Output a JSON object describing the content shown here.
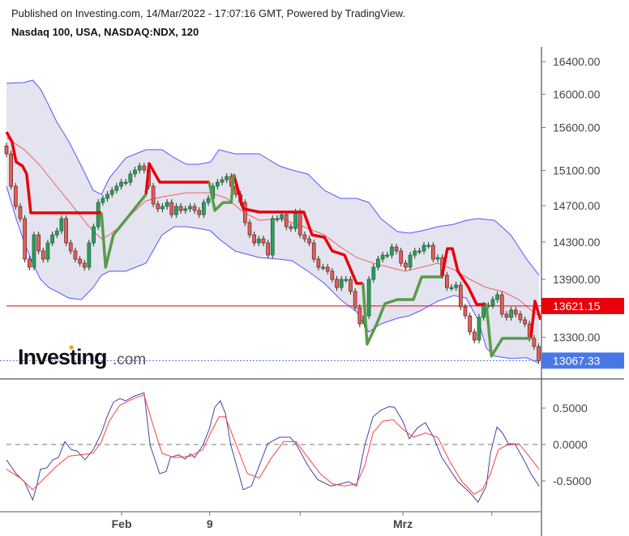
{
  "header": {
    "published": "Published on Investing.com, 14/Mar/2022 - 17:07:16 GMT, Powered by TradingView.",
    "symbol": "Nasdaq 100, USA, NASDAQ:NDX, 120"
  },
  "logo": {
    "main": "Investing",
    "suffix": ".com"
  },
  "colors": {
    "up": "#2e9e5b",
    "down": "#e0605a",
    "band_fill": "#e4e4f0",
    "band_line": "#5555ff",
    "basis": "#f06060",
    "trend_down": "#e8000b",
    "trend_up": "#5a9a4a",
    "osc_fast": "#4444aa",
    "osc_slow": "#ff4040",
    "last_price": "#4a77e8",
    "ref_price": "#e8000b"
  },
  "chart_data": [
    {
      "type": "candlestick",
      "yscale": "log",
      "ylim": [
        12950,
        16750
      ],
      "yticks": [
        "16400.00",
        "16000.00",
        "15600.00",
        "15100.00",
        "14700.00",
        "14300.00",
        "13900.00",
        "13300.00"
      ],
      "ytick_values": [
        16400,
        16000,
        15600,
        15100,
        14700,
        14300,
        13900,
        13300
      ],
      "closes": [
        15291,
        14919,
        14692,
        14557,
        14115,
        14029,
        14378,
        14203,
        14115,
        14290,
        14378,
        14422,
        14557,
        14290,
        14203,
        14115,
        14072,
        14029,
        14290,
        14467,
        14736,
        14782,
        14827,
        14873,
        14919,
        14965,
        14965,
        15058,
        15104,
        15151,
        15104,
        14919,
        14719,
        14665,
        14692,
        14736,
        14601,
        14692,
        14647,
        14665,
        14692,
        14647,
        14601,
        14736,
        14782,
        14919,
        14965,
        14993,
        15030,
        14919,
        14827,
        14736,
        14512,
        14378,
        14290,
        14334,
        14290,
        14159,
        14557,
        14557,
        14601,
        14467,
        14449,
        14629,
        14378,
        14334,
        14290,
        14115,
        14029,
        14029,
        13986,
        13900,
        13814,
        13900,
        13900,
        13773,
        13604,
        13437,
        13520,
        13900,
        14029,
        14115,
        14159,
        14159,
        14246,
        14203,
        14072,
        14029,
        14159,
        14203,
        14203,
        14264,
        14264,
        14115,
        14132,
        13943,
        13814,
        13814,
        13840,
        13612,
        13520,
        13355,
        13273,
        13504,
        13629,
        13629,
        13688,
        13738,
        13537,
        13504,
        13579,
        13537,
        13479,
        13437,
        13290,
        13208,
        13067.33
      ],
      "band_upper": [
        [
          0,
          16133
        ],
        [
          3.9,
          16143
        ],
        [
          5.7,
          16172
        ],
        [
          7.4,
          16063
        ],
        [
          9.2,
          15867
        ],
        [
          10.9,
          15672
        ],
        [
          13.6,
          15433
        ],
        [
          16.3,
          15151
        ],
        [
          18.9,
          14873
        ],
        [
          20.7,
          14827
        ],
        [
          22.4,
          15011
        ],
        [
          26,
          15244
        ],
        [
          30.4,
          15339
        ],
        [
          33.9,
          15339
        ],
        [
          36.6,
          15244
        ],
        [
          39.2,
          15170
        ],
        [
          41.9,
          15170
        ],
        [
          44.5,
          15197
        ],
        [
          46.3,
          15339
        ],
        [
          49.8,
          15291
        ],
        [
          55.1,
          15291
        ],
        [
          59.5,
          15151
        ],
        [
          62.2,
          15104
        ],
        [
          65.7,
          15058
        ],
        [
          69.3,
          14873
        ],
        [
          72.8,
          14782
        ],
        [
          76.3,
          14782
        ],
        [
          79,
          14736
        ],
        [
          81.6,
          14557
        ],
        [
          85.2,
          14414
        ],
        [
          87.8,
          14396
        ],
        [
          90.5,
          14422
        ],
        [
          94,
          14467
        ],
        [
          97.5,
          14494
        ],
        [
          100.2,
          14538
        ],
        [
          102.8,
          14557
        ],
        [
          106.4,
          14538
        ],
        [
          109.9,
          14378
        ],
        [
          113.4,
          14115
        ],
        [
          116.1,
          13943
        ]
      ],
      "band_lower": [
        [
          0,
          14919
        ],
        [
          2.1,
          14557
        ],
        [
          3.9,
          14290
        ],
        [
          5.7,
          14072
        ],
        [
          7.4,
          13900
        ],
        [
          9.2,
          13814
        ],
        [
          10.9,
          13773
        ],
        [
          13.6,
          13704
        ],
        [
          16.3,
          13688
        ],
        [
          18.9,
          13814
        ],
        [
          20.7,
          13943
        ],
        [
          22.4,
          13986
        ],
        [
          26,
          13986
        ],
        [
          30.4,
          14072
        ],
        [
          33.9,
          14378
        ],
        [
          36.6,
          14467
        ],
        [
          39.2,
          14467
        ],
        [
          41.9,
          14449
        ],
        [
          44.5,
          14422
        ],
        [
          46.3,
          14334
        ],
        [
          49.8,
          14203
        ],
        [
          55.1,
          14132
        ],
        [
          59.5,
          14115
        ],
        [
          62.2,
          14098
        ],
        [
          65.7,
          13986
        ],
        [
          69.3,
          13857
        ],
        [
          72.8,
          13688
        ],
        [
          76.3,
          13562
        ],
        [
          79,
          13355
        ],
        [
          81.6,
          13437
        ],
        [
          85.2,
          13495
        ],
        [
          87.8,
          13520
        ],
        [
          90.5,
          13579
        ],
        [
          94,
          13671
        ],
        [
          97.5,
          13730
        ],
        [
          100.2,
          13704
        ],
        [
          102.8,
          13479
        ],
        [
          104.6,
          13192
        ],
        [
          106.4,
          13112
        ],
        [
          109.9,
          13088
        ],
        [
          113.4,
          13096
        ],
        [
          116.1,
          13043
        ]
      ],
      "band_basis": [
        [
          0,
          15480
        ],
        [
          3.9,
          15339
        ],
        [
          7.4,
          15151
        ],
        [
          10.9,
          14919
        ],
        [
          14.5,
          14692
        ],
        [
          18,
          14467
        ],
        [
          20.7,
          14334
        ],
        [
          22.4,
          14378
        ],
        [
          25.1,
          14485
        ],
        [
          27.7,
          14629
        ],
        [
          30.4,
          14755
        ],
        [
          33.9,
          14800
        ],
        [
          39.2,
          14845
        ],
        [
          44.5,
          14845
        ],
        [
          48,
          14782
        ],
        [
          51.6,
          14629
        ],
        [
          55.1,
          14538
        ],
        [
          59.5,
          14557
        ],
        [
          63.9,
          14485
        ],
        [
          69.3,
          14378
        ],
        [
          72.8,
          14246
        ],
        [
          76.3,
          14132
        ],
        [
          79.9,
          14072
        ],
        [
          83.4,
          14029
        ],
        [
          86.9,
          13986
        ],
        [
          90.5,
          14029
        ],
        [
          94,
          14072
        ],
        [
          97.5,
          14003
        ],
        [
          101,
          13900
        ],
        [
          104.6,
          13814
        ],
        [
          108.1,
          13773
        ],
        [
          111.7,
          13688
        ],
        [
          114.3,
          13579
        ],
        [
          116.1,
          13520
        ]
      ],
      "trend_down_segments": [
        [
          [
            0,
            15547
          ],
          [
            1.2,
            15433
          ],
          [
            2.1,
            15197
          ],
          [
            3.5,
            15151
          ],
          [
            4.4,
            15058
          ],
          [
            5.3,
            14620
          ],
          [
            20.7,
            14620
          ]
        ],
        [
          [
            30.4,
            14827
          ],
          [
            31.1,
            15179
          ],
          [
            33.4,
            14965
          ],
          [
            44.2,
            14965
          ]
        ],
        [
          [
            49.5,
            15058
          ],
          [
            51.6,
            14665
          ],
          [
            55.1,
            14629
          ],
          [
            64.8,
            14629
          ],
          [
            66.6,
            14378
          ],
          [
            69.3,
            14352
          ],
          [
            71,
            14203
          ],
          [
            73.7,
            14159
          ],
          [
            76.3,
            13857
          ],
          [
            77.7,
            13857
          ]
        ],
        [
          [
            94.9,
            13926
          ],
          [
            96.1,
            14228
          ],
          [
            97.2,
            14228
          ],
          [
            98.4,
            13986
          ],
          [
            100.7,
            13814
          ],
          [
            102.5,
            13637
          ],
          [
            104.6,
            13637
          ]
        ],
        [
          [
            114.3,
            13290
          ],
          [
            115.2,
            13671
          ],
          [
            116.4,
            13479
          ]
        ]
      ],
      "trend_up_segments": [
        [
          [
            20.7,
            14620
          ],
          [
            21.6,
            14029
          ],
          [
            23.3,
            14378
          ],
          [
            26.9,
            14601
          ],
          [
            30.4,
            14827
          ]
        ],
        [
          [
            44.2,
            14965
          ],
          [
            45.4,
            14647
          ],
          [
            47.2,
            14736
          ],
          [
            49,
            14736
          ],
          [
            49.5,
            15058
          ]
        ],
        [
          [
            77.7,
            13857
          ],
          [
            78.6,
            13232
          ],
          [
            80.7,
            13437
          ],
          [
            82.5,
            13646
          ],
          [
            85.2,
            13688
          ],
          [
            88.7,
            13688
          ],
          [
            90.5,
            13926
          ],
          [
            94.9,
            13926
          ]
        ],
        [
          [
            104.6,
            13637
          ],
          [
            105.7,
            13112
          ],
          [
            108.1,
            13290
          ],
          [
            114.3,
            13290
          ]
        ]
      ],
      "ref_price": {
        "value": 13621.15,
        "label": "13621.15"
      },
      "last_price": {
        "value": 13067.33,
        "label": "13067.33"
      }
    },
    {
      "type": "line",
      "ylim": [
        -0.92,
        0.92
      ],
      "yticks": [
        "0.5000",
        "0.0000",
        "-0.5000"
      ],
      "ytick_values": [
        0.5,
        0,
        -0.5
      ],
      "zero_line": "dashed",
      "fast": [
        [
          0,
          -0.21
        ],
        [
          2.1,
          -0.4
        ],
        [
          3.9,
          -0.51
        ],
        [
          5.7,
          -0.76
        ],
        [
          6.5,
          -0.59
        ],
        [
          7.4,
          -0.34
        ],
        [
          8.8,
          -0.32
        ],
        [
          10.1,
          -0.21
        ],
        [
          11.3,
          -0.18
        ],
        [
          12.7,
          0.04
        ],
        [
          14.1,
          -0.07
        ],
        [
          15.4,
          -0.09
        ],
        [
          17.1,
          -0.21
        ],
        [
          18.9,
          -0.07
        ],
        [
          20.7,
          0.16
        ],
        [
          21.9,
          0.38
        ],
        [
          23.3,
          0.58
        ],
        [
          24.7,
          0.63
        ],
        [
          26,
          0.6
        ],
        [
          27.7,
          0.66
        ],
        [
          30,
          0.71
        ],
        [
          31.3,
          -0.01
        ],
        [
          33.4,
          -0.4
        ],
        [
          34.8,
          -0.37
        ],
        [
          35.7,
          -0.18
        ],
        [
          37.5,
          -0.14
        ],
        [
          38.9,
          -0.2
        ],
        [
          40.1,
          -0.13
        ],
        [
          41,
          -0.18
        ],
        [
          42.8,
          -0.01
        ],
        [
          44.2,
          0.21
        ],
        [
          45.4,
          0.51
        ],
        [
          46.6,
          0.6
        ],
        [
          47.7,
          0.43
        ],
        [
          48.9,
          -0.01
        ],
        [
          51.6,
          -0.62
        ],
        [
          53.4,
          -0.57
        ],
        [
          55.1,
          -0.29
        ],
        [
          56.9,
          0.01
        ],
        [
          59.5,
          0.1
        ],
        [
          61.8,
          0.1
        ],
        [
          63.1,
          0.01
        ],
        [
          65.7,
          -0.29
        ],
        [
          67.8,
          -0.48
        ],
        [
          70.7,
          -0.57
        ],
        [
          72.8,
          -0.54
        ],
        [
          74.6,
          -0.51
        ],
        [
          76.3,
          -0.57
        ],
        [
          78.1,
          -0.01
        ],
        [
          79.9,
          0.38
        ],
        [
          81.6,
          0.47
        ],
        [
          83.4,
          0.52
        ],
        [
          84.6,
          0.51
        ],
        [
          86.4,
          0.32
        ],
        [
          87.8,
          0.08
        ],
        [
          89.6,
          0.23
        ],
        [
          91.3,
          0.3
        ],
        [
          93.1,
          0.1
        ],
        [
          94.9,
          -0.18
        ],
        [
          96.6,
          -0.34
        ],
        [
          98.4,
          -0.51
        ],
        [
          101,
          -0.66
        ],
        [
          102.8,
          -0.79
        ],
        [
          104.6,
          -0.57
        ],
        [
          105.5,
          -0.12
        ],
        [
          106.9,
          0.24
        ],
        [
          108.1,
          0.16
        ],
        [
          109.4,
          0.01
        ],
        [
          110.8,
          0.01
        ],
        [
          112.5,
          -0.18
        ],
        [
          114.3,
          -0.4
        ],
        [
          116.1,
          -0.57
        ]
      ],
      "slow": [
        [
          0,
          -0.34
        ],
        [
          3,
          -0.46
        ],
        [
          5.7,
          -0.62
        ],
        [
          8.3,
          -0.46
        ],
        [
          11,
          -0.29
        ],
        [
          13.6,
          -0.16
        ],
        [
          16.3,
          -0.14
        ],
        [
          18.9,
          -0.12
        ],
        [
          20.7,
          0.04
        ],
        [
          22.4,
          0.32
        ],
        [
          24.7,
          0.54
        ],
        [
          27.7,
          0.63
        ],
        [
          30,
          0.68
        ],
        [
          32.2,
          0.21
        ],
        [
          33.9,
          -0.12
        ],
        [
          36.6,
          -0.18
        ],
        [
          40.1,
          -0.16
        ],
        [
          42.8,
          -0.07
        ],
        [
          44.5,
          0.16
        ],
        [
          46.3,
          0.38
        ],
        [
          47.7,
          0.38
        ],
        [
          49.8,
          0.04
        ],
        [
          52.5,
          -0.4
        ],
        [
          55.1,
          -0.46
        ],
        [
          57.8,
          -0.18
        ],
        [
          60.4,
          0.04
        ],
        [
          63.1,
          0.04
        ],
        [
          65.7,
          -0.18
        ],
        [
          68.4,
          -0.4
        ],
        [
          71,
          -0.54
        ],
        [
          73.7,
          -0.57
        ],
        [
          76.3,
          -0.54
        ],
        [
          78.1,
          -0.29
        ],
        [
          79.9,
          0.16
        ],
        [
          82,
          0.32
        ],
        [
          84.3,
          0.34
        ],
        [
          86.4,
          0.21
        ],
        [
          88.7,
          0.1
        ],
        [
          91.3,
          0.16
        ],
        [
          94,
          0.1
        ],
        [
          96.6,
          -0.23
        ],
        [
          99.3,
          -0.51
        ],
        [
          101.9,
          -0.68
        ],
        [
          103.7,
          -0.62
        ],
        [
          105.5,
          -0.4
        ],
        [
          107.2,
          -0.07
        ],
        [
          109,
          -0.01
        ],
        [
          111.7,
          0.01
        ],
        [
          113.4,
          -0.12
        ],
        [
          116.1,
          -0.34
        ]
      ]
    }
  ],
  "x_axis": {
    "ticks": [
      {
        "bar": 25.1,
        "label": "Feb"
      },
      {
        "bar": 44.3,
        "label": "9"
      },
      {
        "bar": 64,
        "label": ""
      },
      {
        "bar": 86.4,
        "label": "Mrz"
      },
      {
        "bar": 105.8,
        "label": ""
      }
    ]
  }
}
